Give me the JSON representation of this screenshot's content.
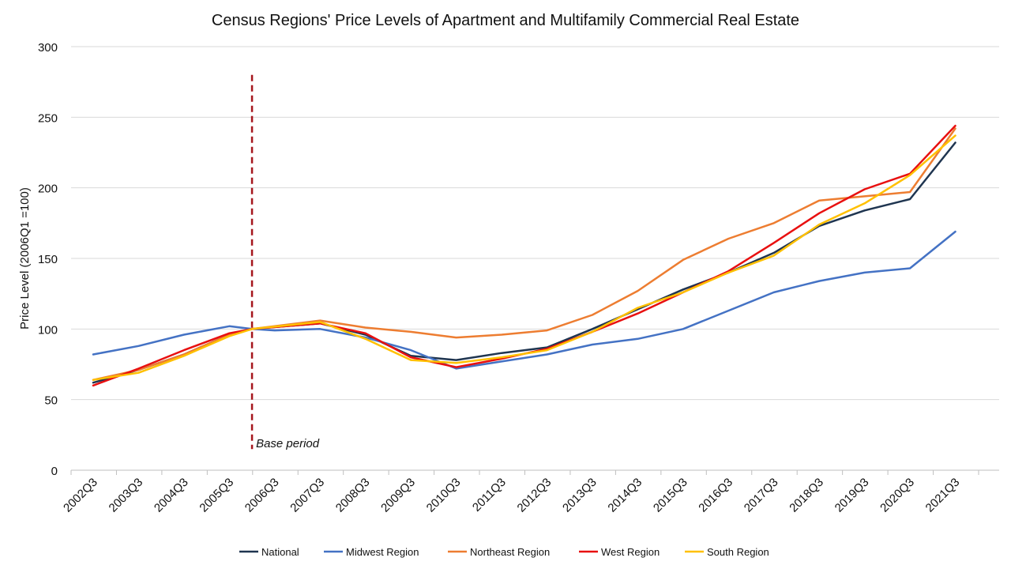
{
  "chart_data": {
    "type": "line",
    "title": "Census Regions' Price Levels of Apartment and Multifamily Commercial Real Estate",
    "xlabel": "",
    "ylabel": "Price Level (2006Q1 =100)",
    "ylim": [
      0,
      300
    ],
    "yticks": [
      0,
      50,
      100,
      150,
      200,
      250,
      300
    ],
    "grid": "horizontal",
    "legend_position": "bottom",
    "x_tick_labels": [
      "2002Q3",
      "2003Q3",
      "2004Q3",
      "2005Q3",
      "2006Q3",
      "2007Q3",
      "2008Q3",
      "2009Q3",
      "2010Q3",
      "2011Q3",
      "2012Q3",
      "2013Q3",
      "2014Q3",
      "2015Q3",
      "2016Q3",
      "2017Q3",
      "2018Q3",
      "2019Q3",
      "2020Q3",
      "2021Q3"
    ],
    "x_first_year": 2002,
    "series": [
      {
        "name": "National",
        "color": "#1f3550",
        "points": [
          [
            "2002Q3",
            62
          ],
          [
            "2003Q3",
            71
          ],
          [
            "2004Q3",
            82
          ],
          [
            "2005Q3",
            96
          ],
          [
            "2006Q1",
            100
          ],
          [
            "2007Q3",
            104
          ],
          [
            "2008Q3",
            96
          ],
          [
            "2009Q3",
            81
          ],
          [
            "2010Q3",
            78
          ],
          [
            "2011Q3",
            83
          ],
          [
            "2012Q3",
            87
          ],
          [
            "2013Q3",
            100
          ],
          [
            "2014Q3",
            114
          ],
          [
            "2015Q3",
            128
          ],
          [
            "2016Q3",
            140
          ],
          [
            "2017Q3",
            154
          ],
          [
            "2018Q3",
            173
          ],
          [
            "2019Q3",
            184
          ],
          [
            "2020Q3",
            192
          ],
          [
            "2021Q3",
            232
          ]
        ]
      },
      {
        "name": "Midwest Region",
        "color": "#4472c4",
        "points": [
          [
            "2002Q3",
            82
          ],
          [
            "2003Q3",
            88
          ],
          [
            "2004Q3",
            96
          ],
          [
            "2005Q3",
            102
          ],
          [
            "2006Q1",
            100
          ],
          [
            "2006Q3",
            99
          ],
          [
            "2007Q3",
            100
          ],
          [
            "2008Q3",
            94
          ],
          [
            "2009Q3",
            85
          ],
          [
            "2010Q3",
            72
          ],
          [
            "2011Q3",
            77
          ],
          [
            "2012Q3",
            82
          ],
          [
            "2013Q3",
            89
          ],
          [
            "2014Q3",
            93
          ],
          [
            "2015Q3",
            100
          ],
          [
            "2016Q3",
            113
          ],
          [
            "2017Q3",
            126
          ],
          [
            "2018Q3",
            134
          ],
          [
            "2019Q3",
            140
          ],
          [
            "2020Q3",
            143
          ],
          [
            "2021Q3",
            169
          ]
        ]
      },
      {
        "name": "Northeast Region",
        "color": "#ed7d31",
        "points": [
          [
            "2002Q3",
            64
          ],
          [
            "2003Q3",
            71
          ],
          [
            "2004Q3",
            82
          ],
          [
            "2005Q3",
            96
          ],
          [
            "2006Q1",
            100
          ],
          [
            "2007Q3",
            106
          ],
          [
            "2008Q3",
            101
          ],
          [
            "2009Q3",
            98
          ],
          [
            "2010Q3",
            94
          ],
          [
            "2011Q3",
            96
          ],
          [
            "2012Q3",
            99
          ],
          [
            "2013Q3",
            110
          ],
          [
            "2014Q3",
            127
          ],
          [
            "2015Q3",
            149
          ],
          [
            "2016Q3",
            164
          ],
          [
            "2017Q3",
            175
          ],
          [
            "2018Q3",
            191
          ],
          [
            "2019Q3",
            194
          ],
          [
            "2020Q3",
            197
          ],
          [
            "2021Q3",
            242
          ]
        ]
      },
      {
        "name": "West Region",
        "color": "#e81010",
        "points": [
          [
            "2002Q3",
            60
          ],
          [
            "2003Q3",
            72
          ],
          [
            "2004Q3",
            85
          ],
          [
            "2005Q3",
            97
          ],
          [
            "2006Q1",
            100
          ],
          [
            "2007Q3",
            104
          ],
          [
            "2008Q3",
            97
          ],
          [
            "2009Q3",
            80
          ],
          [
            "2010Q3",
            73
          ],
          [
            "2011Q3",
            79
          ],
          [
            "2012Q3",
            86
          ],
          [
            "2013Q3",
            98
          ],
          [
            "2014Q3",
            111
          ],
          [
            "2015Q3",
            126
          ],
          [
            "2016Q3",
            141
          ],
          [
            "2017Q3",
            161
          ],
          [
            "2018Q3",
            182
          ],
          [
            "2019Q3",
            199
          ],
          [
            "2020Q3",
            210
          ],
          [
            "2021Q3",
            244
          ]
        ]
      },
      {
        "name": "South Region",
        "color": "#ffc000",
        "points": [
          [
            "2002Q3",
            64
          ],
          [
            "2003Q3",
            69
          ],
          [
            "2004Q3",
            81
          ],
          [
            "2005Q3",
            95
          ],
          [
            "2006Q1",
            100
          ],
          [
            "2007Q3",
            105
          ],
          [
            "2008Q3",
            93
          ],
          [
            "2009Q3",
            78
          ],
          [
            "2010Q3",
            76
          ],
          [
            "2011Q3",
            80
          ],
          [
            "2012Q3",
            85
          ],
          [
            "2013Q3",
            98
          ],
          [
            "2014Q3",
            115
          ],
          [
            "2015Q3",
            126
          ],
          [
            "2016Q3",
            140
          ],
          [
            "2017Q3",
            152
          ],
          [
            "2018Q3",
            174
          ],
          [
            "2019Q3",
            189
          ],
          [
            "2020Q3",
            209
          ],
          [
            "2021Q3",
            237
          ]
        ]
      }
    ],
    "annotations": [
      {
        "type": "vertical-dashed-line",
        "x": "2006Q1",
        "ymin": 15,
        "ymax": 280,
        "label": "Base period",
        "color": "#a5161d"
      }
    ]
  }
}
